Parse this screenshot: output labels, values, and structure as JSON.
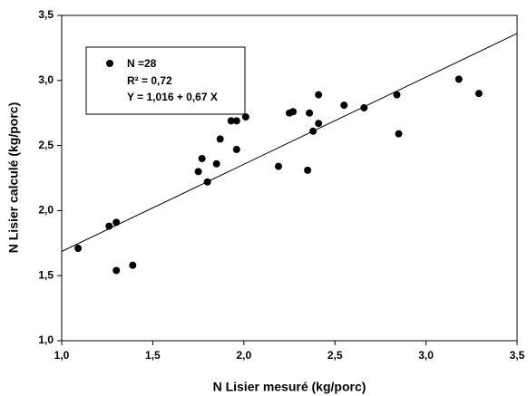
{
  "chart_data": {
    "type": "scatter",
    "x_label": "N Lisier mesuré (kg/porc)",
    "y_label": "N Lisier calculé (kg/porc)",
    "annotations": [
      "N =28",
      "R² = 0,72",
      "Y = 1,016 + 0,67 X"
    ],
    "color": "#000000",
    "x": [
      1.09,
      1.26,
      1.3,
      1.3,
      1.39,
      1.75,
      1.77,
      1.8,
      1.85,
      1.87,
      1.93,
      1.96,
      1.96,
      2.01,
      2.19,
      2.25,
      2.27,
      2.35,
      2.36,
      2.38,
      2.41,
      2.41,
      2.55,
      2.66,
      2.84,
      2.85,
      3.18,
      3.29
    ],
    "values": [
      1.71,
      1.88,
      1.91,
      1.54,
      1.58,
      2.3,
      2.4,
      2.22,
      2.36,
      2.55,
      2.69,
      2.69,
      2.47,
      2.72,
      2.34,
      2.75,
      2.76,
      2.31,
      2.75,
      2.61,
      2.89,
      2.67,
      2.81,
      2.79,
      2.89,
      2.59,
      3.01,
      2.9
    ],
    "trendline": {
      "intercept": 1.016,
      "slope": 0.67
    },
    "xlim": [
      1.0,
      3.5
    ],
    "ylim": [
      1.0,
      3.5
    ],
    "xticks": [
      {
        "value": 1.0,
        "label": "1,0"
      },
      {
        "value": 1.5,
        "label": "1,5"
      },
      {
        "value": 2.0,
        "label": "2,0"
      },
      {
        "value": 2.5,
        "label": "2,5"
      },
      {
        "value": 3.0,
        "label": "3,0"
      },
      {
        "value": 3.5,
        "label": "3,5"
      }
    ],
    "yticks": [
      {
        "value": 1.0,
        "label": "1,0"
      },
      {
        "value": 1.5,
        "label": "1,5"
      },
      {
        "value": 2.0,
        "label": "2,0"
      },
      {
        "value": 2.5,
        "label": "2,5"
      },
      {
        "value": 3.0,
        "label": "3,0"
      },
      {
        "value": 3.5,
        "label": "3,5"
      }
    ],
    "grid": false
  }
}
